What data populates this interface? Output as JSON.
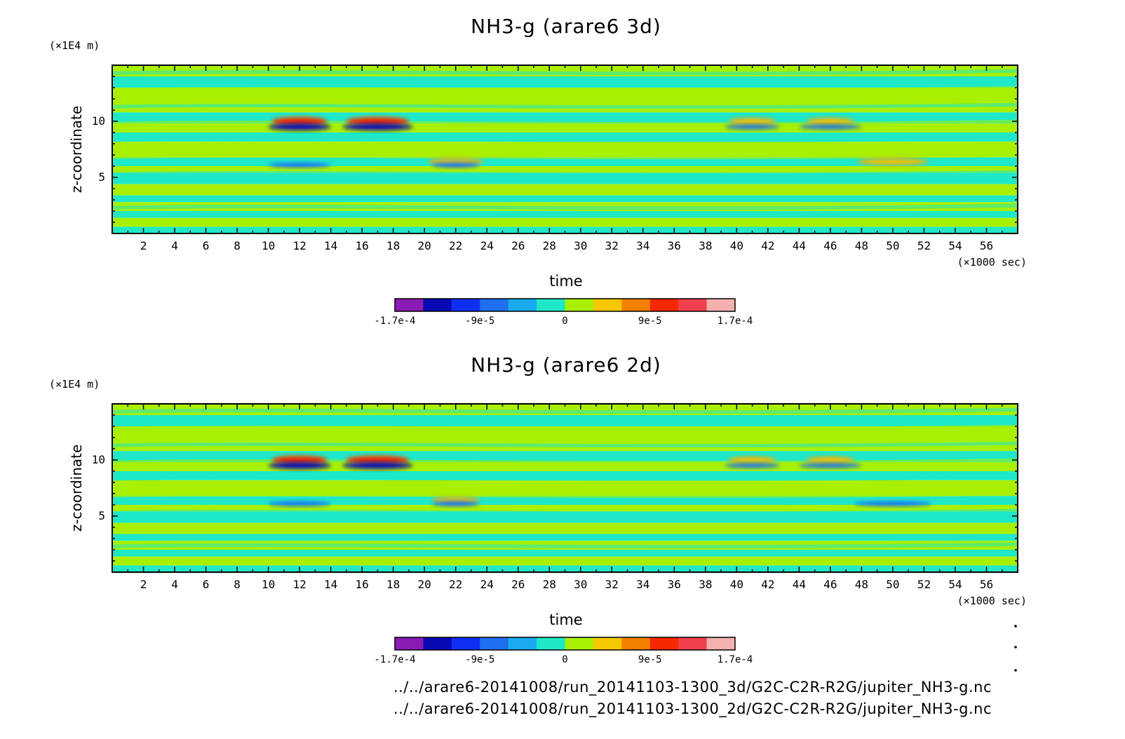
{
  "chart_data": [
    {
      "type": "heatmap",
      "title": "NH3-g (arare6 3d)",
      "xlabel": "time",
      "x_unit": "(×1000 sec)",
      "ylabel": "z-coordinate",
      "y_unit": "(×1E4 m)",
      "xlim": [
        0,
        58
      ],
      "ylim": [
        0,
        15
      ],
      "x_ticks": [
        2,
        4,
        6,
        8,
        10,
        12,
        14,
        16,
        18,
        20,
        22,
        24,
        26,
        28,
        30,
        32,
        34,
        36,
        38,
        40,
        42,
        44,
        46,
        48,
        50,
        52,
        54,
        56
      ],
      "y_ticks": [
        5,
        10
      ],
      "colorbar": {
        "labels": [
          "-1.7e-4",
          "-9e-5",
          "0",
          "9e-5",
          "1.7e-4"
        ],
        "colors": [
          "#8a1bb5",
          "#0a0ab4",
          "#0f2ff5",
          "#1f6ff0",
          "#1aaaf0",
          "#1ee8c8",
          "#a8f000",
          "#f5c800",
          "#f58000",
          "#f52800",
          "#f0404c",
          "#f5b0b0"
        ]
      },
      "background_pattern": [
        {
          "y": [
            0.0,
            0.6
          ],
          "value": "neg_small"
        },
        {
          "y": [
            0.6,
            1.4
          ],
          "value": "pos_small"
        },
        {
          "y": [
            1.4,
            2.0
          ],
          "value": "neg_small"
        },
        {
          "y": [
            2.0,
            2.8
          ],
          "value": "pos_small"
        },
        {
          "y": [
            2.8,
            3.4
          ],
          "value": "neg_small"
        },
        {
          "y": [
            3.4,
            4.4
          ],
          "value": "pos_small"
        },
        {
          "y": [
            4.4,
            5.4
          ],
          "value": "neg_small"
        },
        {
          "y": [
            5.4,
            6.0
          ],
          "value": "pos_small"
        },
        {
          "y": [
            6.0,
            6.8
          ],
          "value": "neg_small"
        },
        {
          "y": [
            6.8,
            8.2
          ],
          "value": "pos_small"
        },
        {
          "y": [
            8.2,
            9.0
          ],
          "value": "neg_small"
        },
        {
          "y": [
            9.0,
            9.8
          ],
          "value": "pos_small"
        },
        {
          "y": [
            9.8,
            10.8
          ],
          "value": "neg_small"
        },
        {
          "y": [
            10.8,
            13.0
          ],
          "value": "pos_small"
        },
        {
          "y": [
            13.0,
            14.0
          ],
          "value": "neg_small"
        },
        {
          "y": [
            14.0,
            15.0
          ],
          "value": "pos_small"
        }
      ],
      "features": [
        {
          "x": 12,
          "y": 10.0,
          "width": 3.5,
          "kind": "positive_peak"
        },
        {
          "x": 17,
          "y": 10.0,
          "width": 4.0,
          "kind": "positive_peak"
        },
        {
          "x": 12,
          "y": 9.5,
          "width": 4.0,
          "kind": "negative_peak"
        },
        {
          "x": 17,
          "y": 9.5,
          "width": 4.5,
          "kind": "negative_peak"
        },
        {
          "x": 41,
          "y": 10.0,
          "width": 3.0,
          "kind": "positive_weak"
        },
        {
          "x": 46,
          "y": 10.0,
          "width": 3.0,
          "kind": "positive_weak"
        },
        {
          "x": 41,
          "y": 9.5,
          "width": 3.5,
          "kind": "negative_weak"
        },
        {
          "x": 46,
          "y": 9.5,
          "width": 4.0,
          "kind": "negative_weak"
        },
        {
          "x": 22,
          "y": 6.4,
          "width": 3.5,
          "kind": "positive_weak"
        },
        {
          "x": 12,
          "y": 6.1,
          "width": 4.0,
          "kind": "negative_weak"
        },
        {
          "x": 22,
          "y": 6.1,
          "width": 3.0,
          "kind": "negative_weak"
        },
        {
          "x": 50,
          "y": 6.4,
          "width": 4.5,
          "kind": "positive_weak"
        }
      ]
    },
    {
      "type": "heatmap",
      "title": "NH3-g (arare6 2d)",
      "xlabel": "time",
      "x_unit": "(×1000 sec)",
      "ylabel": "z-coordinate",
      "y_unit": "(×1E4 m)",
      "xlim": [
        0,
        58
      ],
      "ylim": [
        0,
        15
      ],
      "x_ticks": [
        2,
        4,
        6,
        8,
        10,
        12,
        14,
        16,
        18,
        20,
        22,
        24,
        26,
        28,
        30,
        32,
        34,
        36,
        38,
        40,
        42,
        44,
        46,
        48,
        50,
        52,
        54,
        56
      ],
      "y_ticks": [
        5,
        10
      ],
      "colorbar": {
        "labels": [
          "-1.7e-4",
          "-9e-5",
          "0",
          "9e-5",
          "1.7e-4"
        ],
        "colors": [
          "#8a1bb5",
          "#0a0ab4",
          "#0f2ff5",
          "#1f6ff0",
          "#1aaaf0",
          "#1ee8c8",
          "#a8f000",
          "#f5c800",
          "#f58000",
          "#f52800",
          "#f0404c",
          "#f5b0b0"
        ]
      },
      "background_pattern": [
        {
          "y": [
            0.0,
            0.6
          ],
          "value": "neg_small"
        },
        {
          "y": [
            0.6,
            1.4
          ],
          "value": "pos_small"
        },
        {
          "y": [
            1.4,
            2.0
          ],
          "value": "neg_small"
        },
        {
          "y": [
            2.0,
            2.8
          ],
          "value": "pos_small"
        },
        {
          "y": [
            2.8,
            3.4
          ],
          "value": "neg_small"
        },
        {
          "y": [
            3.4,
            4.4
          ],
          "value": "pos_small"
        },
        {
          "y": [
            4.4,
            5.4
          ],
          "value": "neg_small"
        },
        {
          "y": [
            5.4,
            6.0
          ],
          "value": "pos_small"
        },
        {
          "y": [
            6.0,
            6.8
          ],
          "value": "neg_small"
        },
        {
          "y": [
            6.8,
            8.2
          ],
          "value": "pos_small"
        },
        {
          "y": [
            8.2,
            9.0
          ],
          "value": "neg_small"
        },
        {
          "y": [
            9.0,
            9.8
          ],
          "value": "pos_small"
        },
        {
          "y": [
            9.8,
            10.8
          ],
          "value": "neg_small"
        },
        {
          "y": [
            10.8,
            13.0
          ],
          "value": "pos_small"
        },
        {
          "y": [
            13.0,
            14.0
          ],
          "value": "neg_small"
        },
        {
          "y": [
            14.0,
            15.0
          ],
          "value": "pos_small"
        }
      ],
      "features": [
        {
          "x": 12,
          "y": 10.0,
          "width": 3.5,
          "kind": "positive_peak"
        },
        {
          "x": 17,
          "y": 10.0,
          "width": 4.0,
          "kind": "positive_peak"
        },
        {
          "x": 12,
          "y": 9.5,
          "width": 4.0,
          "kind": "negative_peak"
        },
        {
          "x": 17,
          "y": 9.5,
          "width": 4.5,
          "kind": "negative_peak"
        },
        {
          "x": 41,
          "y": 10.0,
          "width": 3.0,
          "kind": "positive_weak"
        },
        {
          "x": 46,
          "y": 10.0,
          "width": 3.0,
          "kind": "positive_weak"
        },
        {
          "x": 41,
          "y": 9.5,
          "width": 3.5,
          "kind": "negative_weak"
        },
        {
          "x": 46,
          "y": 9.5,
          "width": 4.0,
          "kind": "negative_weak"
        },
        {
          "x": 22,
          "y": 6.4,
          "width": 3.0,
          "kind": "positive_weak"
        },
        {
          "x": 12,
          "y": 6.1,
          "width": 4.0,
          "kind": "negative_weak"
        },
        {
          "x": 22,
          "y": 6.1,
          "width": 3.0,
          "kind": "negative_weak"
        },
        {
          "x": 50,
          "y": 6.1,
          "width": 5.0,
          "kind": "negative_weak"
        }
      ]
    }
  ],
  "footer": {
    "file_3d": "../../arare6-20141008/run_20141103-1300_3d/G2C-C2R-R2G/jupiter_NH3-g.nc",
    "file_2d": "../../arare6-20141008/run_20141103-1300_2d/G2C-C2R-R2G/jupiter_NH3-g.nc"
  }
}
